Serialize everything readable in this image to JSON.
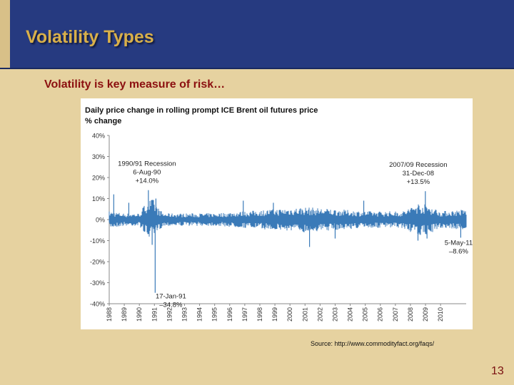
{
  "slide": {
    "title": "Volatility Types",
    "subtitle": "Volatility is key measure of risk…",
    "source": "Source: http://www.commodityfact.org/faqs/",
    "page_number": "13"
  },
  "colors": {
    "header": "#263a80",
    "background": "#e6d2a0",
    "title": "#d9b04a",
    "subtitle": "#8c1010",
    "series": "#3a7ab8"
  },
  "chart_data": {
    "type": "line",
    "title": "Daily price change in rolling prompt ICE Brent oil futures price",
    "ylabel": "% change",
    "xlabel": "",
    "ylim": [
      -40,
      40
    ],
    "y_ticks": [
      40,
      30,
      20,
      10,
      0,
      -10,
      -20,
      -30,
      -40
    ],
    "y_tick_labels": [
      "40%",
      "30%",
      "20%",
      "10%",
      "0%",
      "-10%",
      "-20%",
      "-30%",
      "-40%"
    ],
    "x_range": [
      1988,
      2011.7
    ],
    "x_tick_labels": [
      "1988",
      "1989",
      "1990",
      "1991",
      "1992",
      "1993",
      "1994",
      "1995",
      "1996",
      "1997",
      "1998",
      "1999",
      "2000",
      "2001",
      "2002",
      "2003",
      "2004",
      "2005",
      "2006",
      "2007",
      "2008",
      "2009",
      "2010"
    ],
    "grid": false,
    "legend": "none",
    "series": [
      {
        "color": "#3a7ab8",
        "envelope": [
          {
            "x": 1988.0,
            "lo": -4,
            "hi": 4
          },
          {
            "x": 1989.0,
            "lo": -3,
            "hi": 3
          },
          {
            "x": 1990.0,
            "lo": -3,
            "hi": 3
          },
          {
            "x": 1990.5,
            "lo": -8,
            "hi": 9
          },
          {
            "x": 1990.9,
            "lo": -10,
            "hi": 10
          },
          {
            "x": 1991.2,
            "lo": -6,
            "hi": 6
          },
          {
            "x": 1991.6,
            "lo": -3,
            "hi": 3
          },
          {
            "x": 1995.0,
            "lo": -3,
            "hi": 3
          },
          {
            "x": 1997.0,
            "lo": -4,
            "hi": 4
          },
          {
            "x": 1999.0,
            "lo": -5,
            "hi": 5
          },
          {
            "x": 2001.0,
            "lo": -6,
            "hi": 6
          },
          {
            "x": 2003.0,
            "lo": -5,
            "hi": 5
          },
          {
            "x": 2005.0,
            "lo": -4,
            "hi": 4
          },
          {
            "x": 2007.5,
            "lo": -4,
            "hi": 4
          },
          {
            "x": 2008.5,
            "lo": -8,
            "hi": 8
          },
          {
            "x": 2009.2,
            "lo": -7,
            "hi": 7
          },
          {
            "x": 2010.0,
            "lo": -4,
            "hi": 4
          },
          {
            "x": 2011.7,
            "lo": -5,
            "hi": 5
          }
        ],
        "spikes": [
          {
            "x": 1988.3,
            "y": 12
          },
          {
            "x": 1989.3,
            "y": 8
          },
          {
            "x": 1990.6,
            "y": 14.0
          },
          {
            "x": 1990.85,
            "y": -12
          },
          {
            "x": 1991.05,
            "y": -34.8
          },
          {
            "x": 1991.1,
            "y": 10
          },
          {
            "x": 1996.9,
            "y": 9
          },
          {
            "x": 1998.9,
            "y": 8
          },
          {
            "x": 2001.3,
            "y": -13
          },
          {
            "x": 2003.0,
            "y": -9
          },
          {
            "x": 2004.9,
            "y": 9
          },
          {
            "x": 2008.5,
            "y": -10
          },
          {
            "x": 2008.99,
            "y": 13.5
          },
          {
            "x": 2009.1,
            "y": -9
          },
          {
            "x": 2011.34,
            "y": -8.6
          }
        ]
      }
    ],
    "annotations": [
      {
        "lines": [
          "1990/91 Recession",
          "6-Aug-90",
          "+14.0%"
        ],
        "x": 1990.6,
        "y": 14.0
      },
      {
        "lines": [
          "2007/09 Recession",
          "31-Dec-08",
          "+13.5%"
        ],
        "x": 2008.99,
        "y": 13.5
      },
      {
        "lines": [
          "17-Jan-91",
          "–34.8%"
        ],
        "x": 1991.05,
        "y": -34.8
      },
      {
        "lines": [
          "5-May-11",
          "–8.6%"
        ],
        "x": 2011.34,
        "y": -8.6
      }
    ]
  }
}
